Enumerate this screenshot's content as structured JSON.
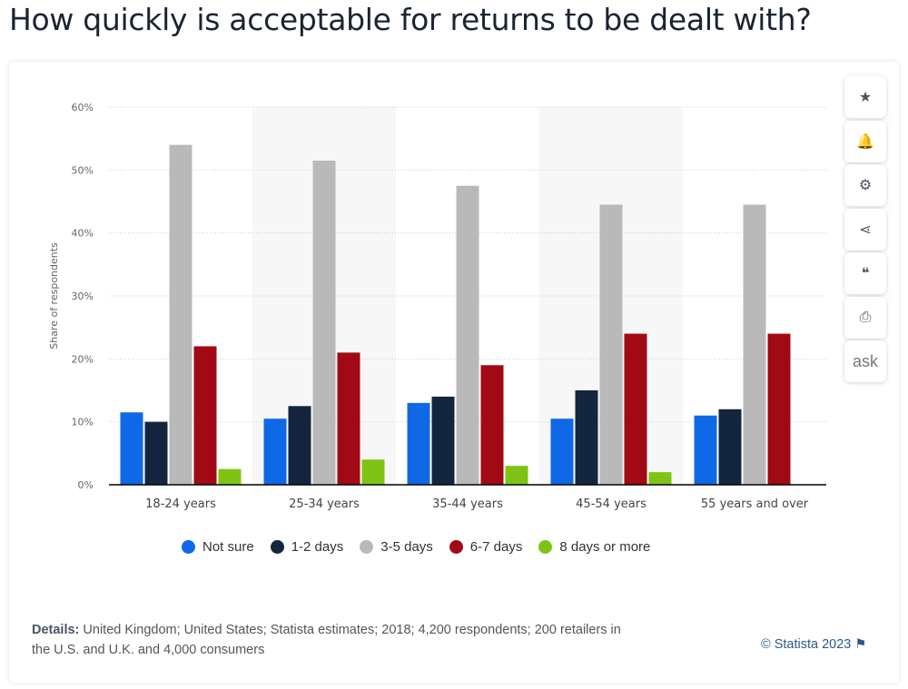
{
  "title": "How quickly is acceptable for returns to be dealt with?",
  "chart_data": {
    "type": "bar",
    "categories": [
      "18-24 years",
      "25-34 years",
      "35-44 years",
      "45-54 years",
      "55 years and over"
    ],
    "series": [
      {
        "name": "Not sure",
        "color": "#0f69e6",
        "values": [
          11.5,
          10.5,
          13,
          10.5,
          11
        ]
      },
      {
        "name": "1-2 days",
        "color": "#14263f",
        "values": [
          10,
          12.5,
          14,
          15,
          12
        ]
      },
      {
        "name": "3-5 days",
        "color": "#b9b9b9",
        "values": [
          54,
          51.5,
          47.5,
          44.5,
          44.5
        ]
      },
      {
        "name": "6-7 days",
        "color": "#a10a14",
        "values": [
          22,
          21,
          19,
          24,
          24
        ]
      },
      {
        "name": "8 days or more",
        "color": "#7fc414",
        "values": [
          2.5,
          4,
          3,
          2,
          0
        ]
      }
    ],
    "ylabel": "Share of respondents",
    "xlabel": "",
    "ylim": [
      0,
      60
    ],
    "yticks": [
      "0%",
      "10%",
      "20%",
      "30%",
      "40%",
      "50%",
      "60%"
    ],
    "grid": true,
    "legend": "bottom"
  },
  "sidebar": [
    {
      "icon": "star-icon",
      "glyph": "★"
    },
    {
      "icon": "bell-icon",
      "glyph": "🔔"
    },
    {
      "icon": "gear-icon",
      "glyph": "⚙"
    },
    {
      "icon": "share-icon",
      "glyph": "⋖"
    },
    {
      "icon": "quote-icon",
      "glyph": "❝"
    },
    {
      "icon": "print-icon",
      "glyph": "⎙"
    },
    {
      "icon": "ask-icon",
      "glyph": "ask"
    }
  ],
  "details_label": "Details:",
  "details": "United Kingdom; United States; Statista estimates; 2018; 4,200 respondents; 200 retailers in the U.S. and U.K. and 4,000 consumers",
  "copyright": "© Statista 2023",
  "flag": "⚑"
}
